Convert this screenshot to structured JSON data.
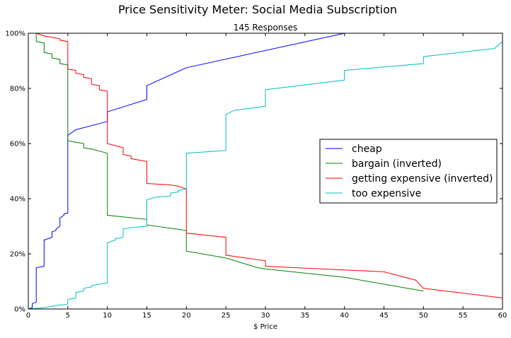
{
  "chart_data": {
    "type": "line",
    "title": "Price Sensitivity Meter: Social Media Subscription",
    "subtitle": "145 Responses",
    "xlabel": "$ Price",
    "ylabel": "",
    "xlim": [
      0,
      60
    ],
    "ylim": [
      0,
      100
    ],
    "xticks": [
      "0",
      "5",
      "10",
      "15",
      "20",
      "25",
      "30",
      "35",
      "40",
      "45",
      "50",
      "55",
      "60"
    ],
    "yticks": [
      "0%",
      "20%",
      "40%",
      "60%",
      "80%",
      "100%"
    ],
    "grid": false,
    "legend_position": "center-right",
    "series": [
      {
        "name": "cheap",
        "color": "#0000ff",
        "x": [
          0,
          0.5,
          0.5,
          1,
          1,
          2,
          2,
          3,
          3,
          3.5,
          3.5,
          4,
          4,
          4.5,
          4.5,
          5,
          5,
          6,
          10,
          10,
          15,
          15,
          20,
          40,
          40
        ],
        "y": [
          0,
          0.5,
          2,
          2.5,
          15,
          15.5,
          25,
          26,
          28,
          28.5,
          29,
          30,
          33,
          34,
          34.5,
          34.8,
          63,
          65,
          68,
          71.5,
          76,
          81,
          87.5,
          100,
          100
        ]
      },
      {
        "name": "bargain (inverted)",
        "color": "#008000",
        "x": [
          1,
          1,
          2,
          2,
          3,
          3,
          4,
          4,
          5,
          5,
          6,
          7,
          7,
          8,
          10,
          10,
          15,
          15,
          20,
          20,
          25,
          29,
          30,
          40,
          50
        ],
        "y": [
          100,
          97,
          96.5,
          93,
          92.5,
          91,
          90.5,
          89,
          88.5,
          61,
          60.5,
          60,
          58.5,
          58,
          56.5,
          34,
          32.5,
          30.5,
          28.5,
          21,
          18.5,
          15,
          14.5,
          11.5,
          6.5
        ]
      },
      {
        "name": "getting expensive (inverted)",
        "color": "#ff0000",
        "x": [
          1,
          2,
          3,
          4,
          4,
          5,
          5,
          6,
          6,
          7,
          7,
          8,
          8,
          9,
          9,
          10,
          10,
          12,
          12,
          13,
          13,
          14,
          15,
          15,
          18,
          19,
          20,
          20,
          25,
          25,
          30,
          30,
          45,
          49,
          50,
          60
        ],
        "y": [
          100,
          99,
          98.5,
          98,
          97.5,
          97,
          87,
          86.5,
          85.5,
          85,
          84,
          83.5,
          81.5,
          81,
          79.5,
          79,
          60,
          58.5,
          56,
          55.5,
          54.5,
          54,
          53.5,
          45.5,
          45,
          44.5,
          43.5,
          27.5,
          26,
          19.5,
          17.5,
          15.5,
          13.5,
          10.5,
          7.5,
          4
        ]
      },
      {
        "name": "too expensive",
        "color": "#00bfbf",
        "x": [
          0,
          2,
          3,
          4,
          4.5,
          5,
          5,
          6,
          6,
          7,
          7,
          8,
          8,
          10,
          10,
          11,
          11,
          12,
          12,
          13,
          15,
          15,
          16,
          18,
          18,
          19,
          19,
          20,
          20,
          25,
          25,
          26,
          30,
          30,
          40,
          40,
          50,
          50,
          59,
          60
        ],
        "y": [
          0,
          0.5,
          1,
          1.5,
          1.5,
          1.8,
          3.5,
          4,
          6,
          6.5,
          7.5,
          8,
          8.5,
          9.5,
          24,
          25,
          25.5,
          26,
          29,
          29.5,
          30,
          39.5,
          40.5,
          41,
          42,
          42.5,
          43,
          43.5,
          56.5,
          57.5,
          70.5,
          72,
          73.5,
          79.5,
          83,
          86.5,
          89,
          91.5,
          94.5,
          97
        ]
      }
    ]
  }
}
